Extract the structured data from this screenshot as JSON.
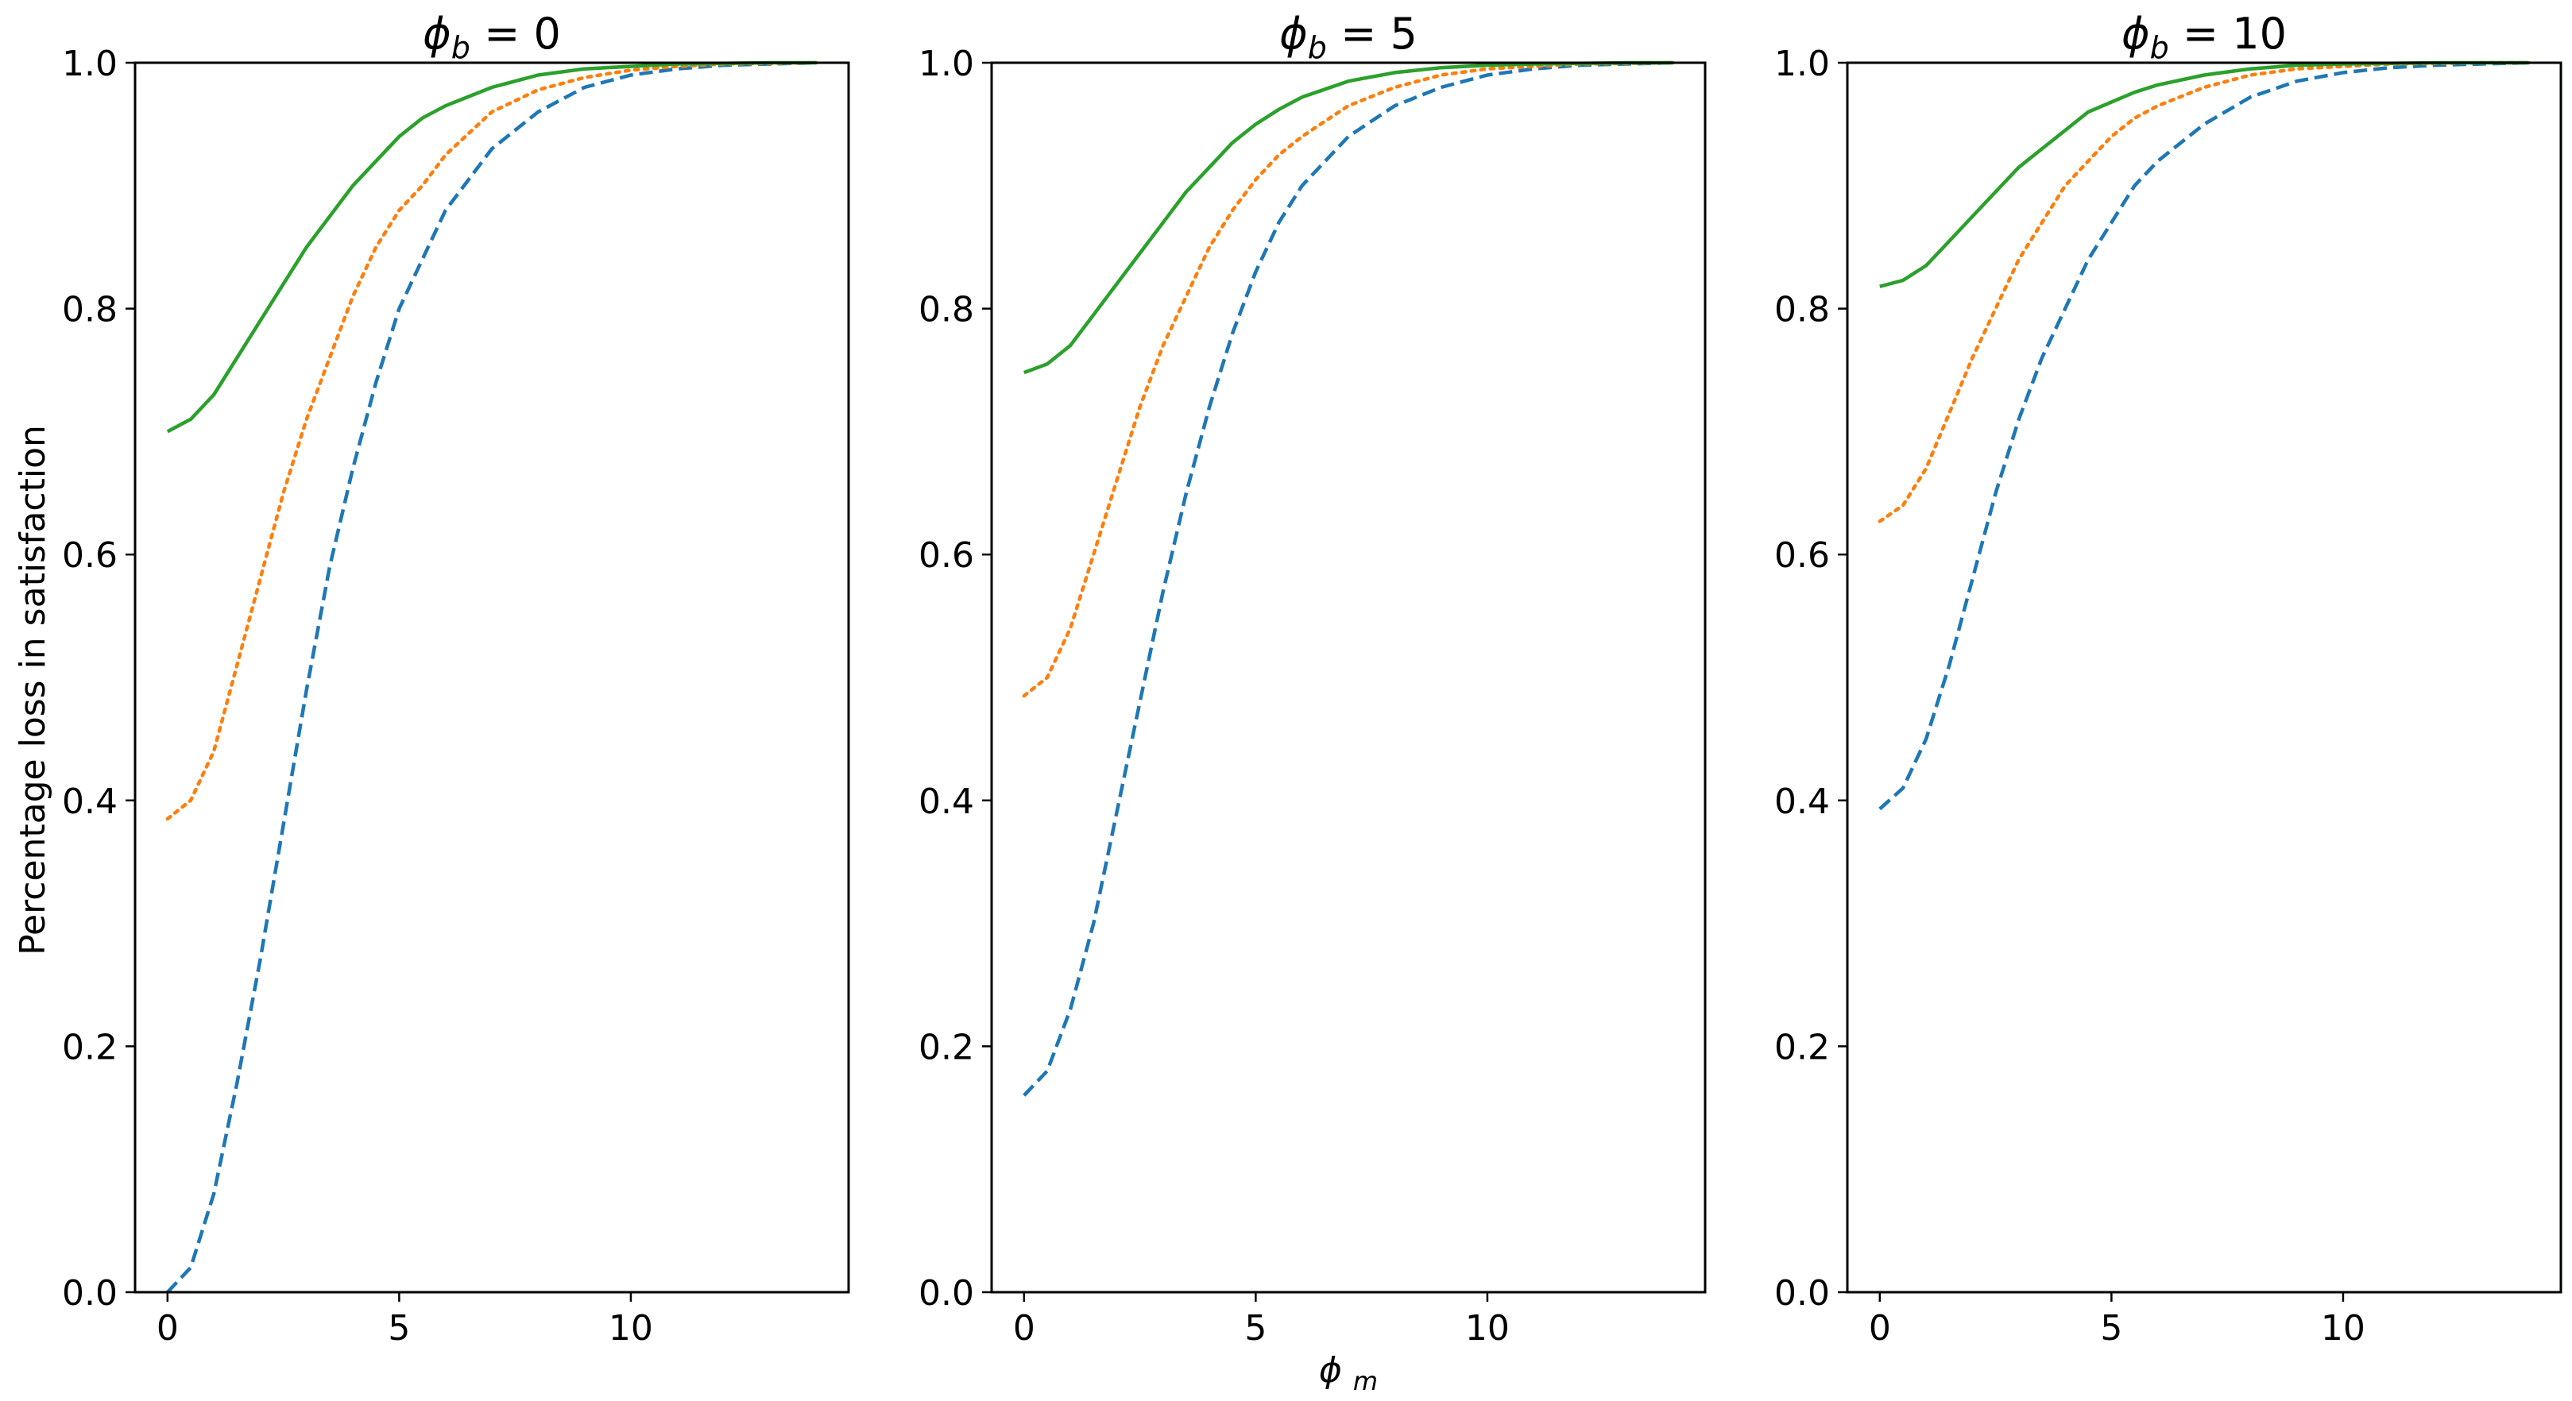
{
  "figure": {
    "xlabel": "ϕm",
    "ylabel": "Percentage loss in satisfaction"
  },
  "chart_data": [
    {
      "type": "line",
      "title": "ϕb = 0",
      "xlabel": "ϕm",
      "ylabel": "Percentage loss in satisfaction",
      "xlim": [
        -0.7,
        14.7
      ],
      "ylim": [
        0,
        1
      ],
      "xticks": [
        0,
        5,
        10
      ],
      "xtick_labels": [
        "0",
        "5",
        "10"
      ],
      "yticks": [
        0,
        0.2,
        0.4,
        0.6,
        0.8,
        1.0
      ],
      "ytick_labels": [
        "0.0",
        "0.2",
        "0.4",
        "0.6",
        "0.8",
        "1.0"
      ],
      "grid": false,
      "x": [
        0,
        0.5,
        1,
        1.5,
        2,
        2.5,
        3,
        3.5,
        4,
        4.5,
        5,
        5.5,
        6,
        7,
        8,
        9,
        10,
        11,
        12,
        13,
        14
      ],
      "series": [
        {
          "style": "dashed",
          "color": "#1f77b4",
          "values": [
            0.0,
            0.02,
            0.08,
            0.17,
            0.27,
            0.38,
            0.49,
            0.59,
            0.67,
            0.74,
            0.8,
            0.84,
            0.88,
            0.93,
            0.96,
            0.98,
            0.99,
            0.995,
            0.998,
            0.999,
            1.0
          ]
        },
        {
          "style": "dotted",
          "color": "#ff7f0e",
          "values": [
            0.385,
            0.4,
            0.44,
            0.51,
            0.58,
            0.65,
            0.71,
            0.76,
            0.81,
            0.85,
            0.88,
            0.9,
            0.925,
            0.96,
            0.978,
            0.988,
            0.994,
            0.997,
            0.999,
            0.9995,
            1.0
          ]
        },
        {
          "style": "solid",
          "color": "#2ca02c",
          "values": [
            0.7,
            0.71,
            0.73,
            0.76,
            0.79,
            0.82,
            0.85,
            0.875,
            0.9,
            0.92,
            0.94,
            0.955,
            0.965,
            0.98,
            0.99,
            0.995,
            0.997,
            0.999,
            0.9995,
            1.0,
            1.0
          ]
        }
      ]
    },
    {
      "type": "line",
      "title": "ϕb = 5",
      "xlabel": "ϕm",
      "ylabel": "",
      "xlim": [
        -0.7,
        14.7
      ],
      "ylim": [
        0,
        1
      ],
      "xticks": [
        0,
        5,
        10
      ],
      "xtick_labels": [
        "0",
        "5",
        "10"
      ],
      "yticks": [
        0,
        0.2,
        0.4,
        0.6,
        0.8,
        1.0
      ],
      "ytick_labels": [
        "0.0",
        "0.2",
        "0.4",
        "0.6",
        "0.8",
        "1.0"
      ],
      "grid": false,
      "x": [
        0,
        0.5,
        1,
        1.5,
        2,
        2.5,
        3,
        3.5,
        4,
        4.5,
        5,
        5.5,
        6,
        7,
        8,
        9,
        10,
        11,
        12,
        13,
        14
      ],
      "series": [
        {
          "style": "dashed",
          "color": "#1f77b4",
          "values": [
            0.16,
            0.18,
            0.23,
            0.3,
            0.39,
            0.48,
            0.57,
            0.65,
            0.72,
            0.78,
            0.83,
            0.87,
            0.9,
            0.94,
            0.965,
            0.98,
            0.99,
            0.995,
            0.998,
            0.999,
            1.0
          ]
        },
        {
          "style": "dotted",
          "color": "#ff7f0e",
          "values": [
            0.485,
            0.5,
            0.54,
            0.6,
            0.66,
            0.72,
            0.77,
            0.81,
            0.85,
            0.88,
            0.905,
            0.925,
            0.94,
            0.965,
            0.98,
            0.99,
            0.995,
            0.997,
            0.999,
            0.9995,
            1.0
          ]
        },
        {
          "style": "solid",
          "color": "#2ca02c",
          "values": [
            0.748,
            0.755,
            0.77,
            0.795,
            0.82,
            0.845,
            0.87,
            0.895,
            0.915,
            0.935,
            0.95,
            0.962,
            0.972,
            0.985,
            0.992,
            0.996,
            0.998,
            0.999,
            0.9995,
            1.0,
            1.0
          ]
        }
      ]
    },
    {
      "type": "line",
      "title": "ϕb = 10",
      "xlabel": "ϕm",
      "ylabel": "",
      "xlim": [
        -0.7,
        14.7
      ],
      "ylim": [
        0,
        1
      ],
      "xticks": [
        0,
        5,
        10
      ],
      "xtick_labels": [
        "0",
        "5",
        "10"
      ],
      "yticks": [
        0,
        0.2,
        0.4,
        0.6,
        0.8,
        1.0
      ],
      "ytick_labels": [
        "0.0",
        "0.2",
        "0.4",
        "0.6",
        "0.8",
        "1.0"
      ],
      "grid": false,
      "x": [
        0,
        0.5,
        1,
        1.5,
        2,
        2.5,
        3,
        3.5,
        4,
        4.5,
        5,
        5.5,
        6,
        7,
        8,
        9,
        10,
        11,
        12,
        13,
        14
      ],
      "series": [
        {
          "style": "dashed",
          "color": "#1f77b4",
          "values": [
            0.393,
            0.41,
            0.45,
            0.51,
            0.58,
            0.65,
            0.71,
            0.76,
            0.8,
            0.84,
            0.87,
            0.9,
            0.92,
            0.95,
            0.972,
            0.985,
            0.992,
            0.996,
            0.998,
            0.999,
            1.0
          ]
        },
        {
          "style": "dotted",
          "color": "#ff7f0e",
          "values": [
            0.627,
            0.64,
            0.67,
            0.715,
            0.76,
            0.8,
            0.84,
            0.87,
            0.9,
            0.92,
            0.94,
            0.955,
            0.965,
            0.98,
            0.99,
            0.995,
            0.997,
            0.999,
            0.9995,
            1.0,
            1.0
          ]
        },
        {
          "style": "solid",
          "color": "#2ca02c",
          "values": [
            0.818,
            0.823,
            0.835,
            0.855,
            0.875,
            0.895,
            0.915,
            0.93,
            0.945,
            0.96,
            0.968,
            0.976,
            0.982,
            0.99,
            0.995,
            0.998,
            0.999,
            0.9995,
            1.0,
            1.0,
            1.0
          ]
        }
      ]
    }
  ]
}
